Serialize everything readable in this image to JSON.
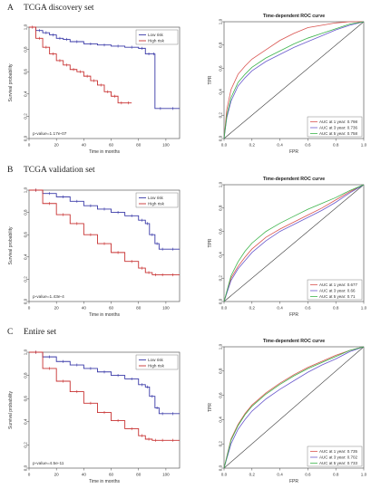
{
  "panels": [
    {
      "letter": "A",
      "title": "TCGA discovery set",
      "km": {
        "xlabel": "Time in months",
        "ylabel": "Survival probability",
        "pvalue": "p-value=1.17e-07",
        "xticks": [
          "0",
          "20",
          "40",
          "60",
          "80",
          "100"
        ],
        "yticks": [
          "0.0",
          "0.2",
          "0.4",
          "0.6",
          "0.8",
          "1.0"
        ],
        "legend": [
          "Low risk",
          "High risk"
        ]
      },
      "roc": {
        "title": "Time-dependent ROC curve",
        "xlabel": "FPR",
        "ylabel": "TPR",
        "ticks": [
          "0.0",
          "0.2",
          "0.4",
          "0.6",
          "0.8",
          "1.0"
        ],
        "legend": [
          "AUC at 1 year:  0.798",
          "AUC at 3 year:  0.736",
          "AUC at 5 year:  0.758"
        ]
      }
    },
    {
      "letter": "B",
      "title": "TCGA validation set",
      "km": {
        "xlabel": "Time in months",
        "ylabel": "Survival probability",
        "pvalue": "p-value=1.43e-4",
        "xticks": [
          "0",
          "20",
          "40",
          "60",
          "80",
          "100"
        ],
        "yticks": [
          "0.0",
          "0.2",
          "0.4",
          "0.6",
          "0.8",
          "1.0"
        ],
        "legend": [
          "Low risk",
          "High risk"
        ]
      },
      "roc": {
        "title": "Time-dependent ROC curve",
        "xlabel": "FPR",
        "ylabel": "TPR",
        "ticks": [
          "0.0",
          "0.2",
          "0.4",
          "0.6",
          "0.8",
          "1.0"
        ],
        "legend": [
          "AUC at 1 year:  0.677",
          "AUC at 3 year:  0.66",
          "AUC at 5 year:  0.71"
        ]
      }
    },
    {
      "letter": "C",
      "title": "Entire set",
      "km": {
        "xlabel": "Time in months",
        "ylabel": "Survival probability",
        "pvalue": "p-value=4.5e-11",
        "xticks": [
          "0",
          "20",
          "40",
          "60",
          "80",
          "100"
        ],
        "yticks": [
          "0.0",
          "0.2",
          "0.4",
          "0.6",
          "0.8",
          "1.0"
        ],
        "legend": [
          "Low risk",
          "High risk"
        ]
      },
      "roc": {
        "title": "Time-dependent ROC curve",
        "xlabel": "FPR",
        "ylabel": "TPR",
        "ticks": [
          "0.0",
          "0.2",
          "0.4",
          "0.6",
          "0.8",
          "1.0"
        ],
        "legend": [
          "AUC at 1 year:  0.735",
          "AUC at 3 year:  0.702",
          "AUC at 5 year:  0.733"
        ]
      }
    }
  ],
  "colors": {
    "low_risk": "#3a3aa8",
    "high_risk": "#c83232",
    "roc_1y": "#d9534f",
    "roc_3y": "#6a5acd",
    "roc_5y": "#3cb44b",
    "axis": "#444444",
    "diagonal": "#333333"
  },
  "chart_data": [
    {
      "panel": "A",
      "type": "line",
      "subtype": "kaplan-meier",
      "xlabel": "Time in months",
      "ylabel": "Survival probability",
      "xlim": [
        0,
        110
      ],
      "ylim": [
        0,
        1
      ],
      "series": [
        {
          "name": "Low risk",
          "x": [
            0,
            5,
            10,
            15,
            20,
            25,
            30,
            40,
            50,
            60,
            70,
            80,
            85,
            90,
            92,
            100,
            110
          ],
          "y": [
            1.0,
            0.97,
            0.95,
            0.93,
            0.9,
            0.89,
            0.87,
            0.85,
            0.84,
            0.83,
            0.82,
            0.81,
            0.76,
            0.76,
            0.27,
            0.27,
            0.27
          ]
        },
        {
          "name": "High risk",
          "x": [
            0,
            5,
            10,
            15,
            20,
            25,
            30,
            35,
            40,
            45,
            50,
            55,
            60,
            65,
            70,
            75
          ],
          "y": [
            1.0,
            0.9,
            0.82,
            0.76,
            0.7,
            0.66,
            0.62,
            0.6,
            0.56,
            0.52,
            0.48,
            0.42,
            0.38,
            0.32,
            0.32,
            0.32
          ]
        }
      ]
    },
    {
      "panel": "A",
      "type": "line",
      "subtype": "roc",
      "title": "Time-dependent ROC curve",
      "xlabel": "FPR",
      "ylabel": "TPR",
      "xlim": [
        0,
        1
      ],
      "ylim": [
        0,
        1
      ],
      "series": [
        {
          "name": "AUC at 1 year:  0.798",
          "x": [
            0,
            0.02,
            0.05,
            0.1,
            0.15,
            0.2,
            0.3,
            0.4,
            0.5,
            0.6,
            0.7,
            0.8,
            0.9,
            1.0
          ],
          "y": [
            0,
            0.25,
            0.42,
            0.55,
            0.62,
            0.68,
            0.76,
            0.84,
            0.9,
            0.95,
            0.97,
            0.99,
            1.0,
            1.0
          ]
        },
        {
          "name": "AUC at 3 year:  0.736",
          "x": [
            0,
            0.02,
            0.05,
            0.1,
            0.15,
            0.2,
            0.3,
            0.4,
            0.5,
            0.6,
            0.7,
            0.8,
            0.9,
            1.0
          ],
          "y": [
            0,
            0.18,
            0.32,
            0.45,
            0.52,
            0.58,
            0.66,
            0.72,
            0.78,
            0.83,
            0.88,
            0.93,
            0.97,
            1.0
          ]
        },
        {
          "name": "AUC at 5 year:  0.758",
          "x": [
            0,
            0.02,
            0.05,
            0.1,
            0.15,
            0.2,
            0.3,
            0.4,
            0.5,
            0.6,
            0.7,
            0.8,
            0.9,
            1.0
          ],
          "y": [
            0,
            0.2,
            0.35,
            0.48,
            0.55,
            0.61,
            0.69,
            0.75,
            0.81,
            0.86,
            0.9,
            0.94,
            0.98,
            1.0
          ]
        }
      ]
    },
    {
      "panel": "B",
      "type": "line",
      "subtype": "kaplan-meier",
      "xlabel": "Time in months",
      "ylabel": "Survival probability",
      "xlim": [
        0,
        110
      ],
      "ylim": [
        0,
        1
      ],
      "series": [
        {
          "name": "Low risk",
          "x": [
            0,
            10,
            20,
            30,
            40,
            50,
            60,
            70,
            80,
            85,
            88,
            92,
            95,
            100,
            110
          ],
          "y": [
            1.0,
            0.97,
            0.94,
            0.9,
            0.86,
            0.83,
            0.8,
            0.77,
            0.73,
            0.7,
            0.6,
            0.52,
            0.47,
            0.47,
            0.47
          ]
        },
        {
          "name": "High risk",
          "x": [
            0,
            10,
            20,
            30,
            40,
            50,
            60,
            70,
            80,
            85,
            90,
            95,
            100,
            110
          ],
          "y": [
            1.0,
            0.88,
            0.78,
            0.7,
            0.6,
            0.52,
            0.44,
            0.36,
            0.3,
            0.26,
            0.24,
            0.24,
            0.24,
            0.24
          ]
        }
      ]
    },
    {
      "panel": "B",
      "type": "line",
      "subtype": "roc",
      "title": "Time-dependent ROC curve",
      "xlabel": "FPR",
      "ylabel": "TPR",
      "xlim": [
        0,
        1
      ],
      "ylim": [
        0,
        1
      ],
      "series": [
        {
          "name": "AUC at 1 year:  0.677",
          "x": [
            0,
            0.05,
            0.1,
            0.15,
            0.2,
            0.3,
            0.4,
            0.5,
            0.6,
            0.7,
            0.8,
            0.9,
            1.0
          ],
          "y": [
            0,
            0.2,
            0.3,
            0.38,
            0.45,
            0.55,
            0.62,
            0.68,
            0.74,
            0.8,
            0.87,
            0.94,
            1.0
          ]
        },
        {
          "name": "AUC at 3 year:  0.66",
          "x": [
            0,
            0.05,
            0.1,
            0.15,
            0.2,
            0.3,
            0.4,
            0.5,
            0.6,
            0.7,
            0.8,
            0.9,
            1.0
          ],
          "y": [
            0,
            0.18,
            0.28,
            0.35,
            0.42,
            0.52,
            0.6,
            0.66,
            0.72,
            0.78,
            0.85,
            0.93,
            1.0
          ]
        },
        {
          "name": "AUC at 5 year:  0.71",
          "x": [
            0,
            0.05,
            0.1,
            0.15,
            0.2,
            0.3,
            0.4,
            0.5,
            0.6,
            0.7,
            0.8,
            0.9,
            1.0
          ],
          "y": [
            0,
            0.22,
            0.34,
            0.43,
            0.5,
            0.6,
            0.67,
            0.73,
            0.79,
            0.84,
            0.89,
            0.95,
            1.0
          ]
        }
      ]
    },
    {
      "panel": "C",
      "type": "line",
      "subtype": "kaplan-meier",
      "xlabel": "Time in months",
      "ylabel": "Survival probability",
      "xlim": [
        0,
        110
      ],
      "ylim": [
        0,
        1
      ],
      "series": [
        {
          "name": "Low risk",
          "x": [
            0,
            10,
            20,
            30,
            40,
            50,
            60,
            70,
            80,
            85,
            88,
            92,
            95,
            100,
            110
          ],
          "y": [
            1.0,
            0.96,
            0.92,
            0.89,
            0.86,
            0.83,
            0.8,
            0.77,
            0.72,
            0.7,
            0.62,
            0.52,
            0.47,
            0.47,
            0.47
          ]
        },
        {
          "name": "High risk",
          "x": [
            0,
            10,
            20,
            30,
            40,
            50,
            60,
            70,
            80,
            85,
            90,
            95,
            100,
            110
          ],
          "y": [
            1.0,
            0.86,
            0.75,
            0.66,
            0.56,
            0.48,
            0.41,
            0.34,
            0.28,
            0.25,
            0.24,
            0.24,
            0.24,
            0.24
          ]
        }
      ]
    },
    {
      "panel": "C",
      "type": "line",
      "subtype": "roc",
      "title": "Time-dependent ROC curve",
      "xlabel": "FPR",
      "ylabel": "TPR",
      "xlim": [
        0,
        1
      ],
      "ylim": [
        0,
        1
      ],
      "series": [
        {
          "name": "AUC at 1 year:  0.735",
          "x": [
            0,
            0.05,
            0.1,
            0.15,
            0.2,
            0.3,
            0.4,
            0.5,
            0.6,
            0.7,
            0.8,
            0.9,
            1.0
          ],
          "y": [
            0,
            0.24,
            0.36,
            0.45,
            0.52,
            0.62,
            0.7,
            0.77,
            0.83,
            0.88,
            0.93,
            0.97,
            1.0
          ]
        },
        {
          "name": "AUC at 3 year:  0.702",
          "x": [
            0,
            0.05,
            0.1,
            0.15,
            0.2,
            0.3,
            0.4,
            0.5,
            0.6,
            0.7,
            0.8,
            0.9,
            1.0
          ],
          "y": [
            0,
            0.2,
            0.32,
            0.4,
            0.47,
            0.57,
            0.65,
            0.72,
            0.79,
            0.85,
            0.9,
            0.96,
            1.0
          ]
        },
        {
          "name": "AUC at 5 year:  0.733",
          "x": [
            0,
            0.05,
            0.1,
            0.15,
            0.2,
            0.3,
            0.4,
            0.5,
            0.6,
            0.7,
            0.8,
            0.9,
            1.0
          ],
          "y": [
            0,
            0.23,
            0.35,
            0.44,
            0.51,
            0.61,
            0.69,
            0.76,
            0.82,
            0.87,
            0.92,
            0.97,
            1.0
          ]
        }
      ]
    }
  ]
}
